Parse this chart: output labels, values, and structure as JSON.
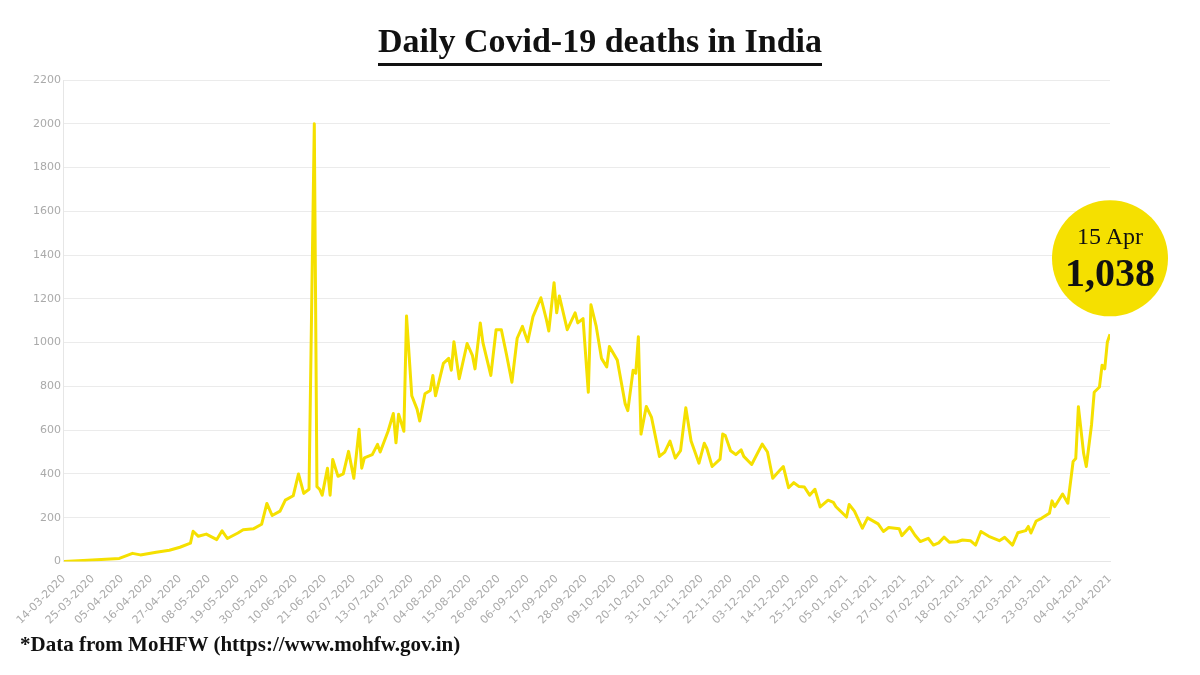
{
  "chart_data": {
    "type": "line",
    "title": "Daily Covid-19 deaths in India",
    "annotations": [
      {
        "text": "15 Apr\n1,038",
        "x": "2021-04-15",
        "y": 1038
      },
      "*Data from MoHFW (https://www.mohfw.gov.in)"
    ],
    "x": [
      "2020-03-14",
      "2020-03-23",
      "2020-04-04",
      "2020-04-09",
      "2020-04-12",
      "2020-04-18",
      "2020-04-23",
      "2020-04-27",
      "2020-05-01",
      "2020-05-02",
      "2020-05-04",
      "2020-05-07",
      "2020-05-11",
      "2020-05-13",
      "2020-05-15",
      "2020-05-19",
      "2020-05-21",
      "2020-05-25",
      "2020-05-28",
      "2020-05-30",
      "2020-06-01",
      "2020-06-04",
      "2020-06-06",
      "2020-06-09",
      "2020-06-11",
      "2020-06-13",
      "2020-06-15",
      "2020-06-17",
      "2020-06-18",
      "2020-06-19",
      "2020-06-20",
      "2020-06-22",
      "2020-06-23",
      "2020-06-24",
      "2020-06-26",
      "2020-06-28",
      "2020-06-30",
      "2020-07-02",
      "2020-07-04",
      "2020-07-05",
      "2020-07-06",
      "2020-07-09",
      "2020-07-11",
      "2020-07-12",
      "2020-07-15",
      "2020-07-17",
      "2020-07-18",
      "2020-07-19",
      "2020-07-21",
      "2020-07-22",
      "2020-07-24",
      "2020-07-26",
      "2020-07-27",
      "2020-07-29",
      "2020-07-31",
      "2020-08-01",
      "2020-08-02",
      "2020-08-05",
      "2020-08-07",
      "2020-08-08",
      "2020-08-09",
      "2020-08-11",
      "2020-08-14",
      "2020-08-16",
      "2020-08-17",
      "2020-08-19",
      "2020-08-20",
      "2020-08-23",
      "2020-08-25",
      "2020-08-27",
      "2020-08-29",
      "2020-08-31",
      "2020-09-02",
      "2020-09-04",
      "2020-09-06",
      "2020-09-08",
      "2020-09-11",
      "2020-09-13",
      "2020-09-14",
      "2020-09-16",
      "2020-09-17",
      "2020-09-18",
      "2020-09-21",
      "2020-09-24",
      "2020-09-25",
      "2020-09-27",
      "2020-09-29",
      "2020-09-30",
      "2020-10-02",
      "2020-10-04",
      "2020-10-06",
      "2020-10-07",
      "2020-10-10",
      "2020-10-13",
      "2020-10-14",
      "2020-10-16",
      "2020-10-17",
      "2020-10-18",
      "2020-10-19",
      "2020-10-21",
      "2020-10-23",
      "2020-10-26",
      "2020-10-28",
      "2020-10-30",
      "2020-11-01",
      "2020-11-03",
      "2020-11-05",
      "2020-11-07",
      "2020-11-10",
      "2020-11-12",
      "2020-11-13",
      "2020-11-15",
      "2020-11-18",
      "2020-11-19",
      "2020-11-20",
      "2020-11-22",
      "2020-11-24",
      "2020-11-26",
      "2020-11-27",
      "2020-11-30",
      "2020-12-04",
      "2020-12-06",
      "2020-12-08",
      "2020-12-10",
      "2020-12-12",
      "2020-12-14",
      "2020-12-16",
      "2020-12-18",
      "2020-12-20",
      "2020-12-22",
      "2020-12-24",
      "2020-12-26",
      "2020-12-29",
      "2020-12-31",
      "2021-01-01",
      "2021-01-05",
      "2021-01-06",
      "2021-01-08",
      "2021-01-11",
      "2021-01-13",
      "2021-01-17",
      "2021-01-19",
      "2021-01-21",
      "2021-01-25",
      "2021-01-26",
      "2021-01-29",
      "2021-01-31",
      "2021-02-02",
      "2021-02-05",
      "2021-02-07",
      "2021-02-09",
      "2021-02-11",
      "2021-02-13",
      "2021-02-16",
      "2021-02-18",
      "2021-02-21",
      "2021-02-23",
      "2021-02-25",
      "2021-02-28",
      "2021-03-04",
      "2021-03-06",
      "2021-03-09",
      "2021-03-11",
      "2021-03-14",
      "2021-03-15",
      "2021-03-16",
      "2021-03-18",
      "2021-03-20",
      "2021-03-23",
      "2021-03-24",
      "2021-03-25",
      "2021-03-28",
      "2021-03-30",
      "2021-04-01",
      "2021-04-02",
      "2021-04-03",
      "2021-04-05",
      "2021-04-06",
      "2021-04-08",
      "2021-04-09",
      "2021-04-11",
      "2021-04-12",
      "2021-04-13",
      "2021-04-14",
      "2021-04-15"
    ],
    "series": [
      {
        "color": "#f5e000",
        "values": [
          0,
          5,
          14,
          37,
          30,
          42,
          51,
          65,
          84,
          138,
          115,
          125,
          100,
          140,
          105,
          130,
          145,
          150,
          170,
          265,
          210,
          230,
          280,
          300,
          400,
          311,
          330,
          2000,
          342,
          330,
          303,
          426,
          303,
          466,
          389,
          400,
          503,
          380,
          604,
          426,
          473,
          488,
          535,
          500,
          595,
          676,
          542,
          673,
          595,
          1122,
          757,
          696,
          642,
          766,
          781,
          850,
          757,
          905,
          928,
          874,
          1004,
          835,
          996,
          942,
          880,
          1090,
          1000,
          850,
          1059,
          1059,
          942,
          819,
          1020,
          1074,
          1004,
          1119,
          1205,
          1110,
          1053,
          1274,
          1136,
          1213,
          1059,
          1136,
          1090,
          1110,
          773,
          1173,
          1074,
          928,
          889,
          982,
          920,
          720,
          689,
          874,
          860,
          1027,
          582,
          708,
          658,
          480,
          500,
          550,
          472,
          506,
          702,
          550,
          449,
          540,
          516,
          434,
          468,
          582,
          575,
          506,
          488,
          510,
          480,
          443,
          536,
          500,
          380,
          408,
          434,
          337,
          360,
          342,
          340,
          303,
          330,
          249,
          280,
          270,
          250,
          203,
          260,
          230,
          152,
          199,
          172,
          137,
          155,
          149,
          118,
          157,
          120,
          91,
          106,
          75,
          85,
          111,
          88,
          90,
          98,
          95,
          75,
          137,
          115,
          95,
          110,
          75,
          131,
          141,
          160,
          130,
          185,
          197,
          220,
          277,
          250,
          308,
          266,
          457,
          470,
          707,
          493,
          434,
          626,
          773,
          797,
          897,
          880,
          1003,
          1038
        ]
      }
    ],
    "xlim": [
      "2020-03-14",
      "2021-04-15"
    ],
    "xticks": [
      {
        "value": "2020-03-14",
        "label": "14-03-2020"
      },
      {
        "value": "2020-03-25",
        "label": "25-03-2020"
      },
      {
        "value": "2020-04-05",
        "label": "05-04-2020"
      },
      {
        "value": "2020-04-16",
        "label": "16-04-2020"
      },
      {
        "value": "2020-04-27",
        "label": "27-04-2020"
      },
      {
        "value": "2020-05-08",
        "label": "08-05-2020"
      },
      {
        "value": "2020-05-19",
        "label": "19-05-2020"
      },
      {
        "value": "2020-05-30",
        "label": "30-05-2020"
      },
      {
        "value": "2020-06-10",
        "label": "10-06-2020"
      },
      {
        "value": "2020-06-21",
        "label": "21-06-2020"
      },
      {
        "value": "2020-07-02",
        "label": "02-07-2020"
      },
      {
        "value": "2020-07-13",
        "label": "13-07-2020"
      },
      {
        "value": "2020-07-24",
        "label": "24-07-2020"
      },
      {
        "value": "2020-08-04",
        "label": "04-08-2020"
      },
      {
        "value": "2020-08-15",
        "label": "15-08-2020"
      },
      {
        "value": "2020-08-26",
        "label": "26-08-2020"
      },
      {
        "value": "2020-09-06",
        "label": "06-09-2020"
      },
      {
        "value": "2020-09-17",
        "label": "17-09-2020"
      },
      {
        "value": "2020-09-28",
        "label": "28-09-2020"
      },
      {
        "value": "2020-10-09",
        "label": "09-10-2020"
      },
      {
        "value": "2020-10-20",
        "label": "20-10-2020"
      },
      {
        "value": "2020-10-31",
        "label": "31-10-2020"
      },
      {
        "value": "2020-11-11",
        "label": "11-11-2020"
      },
      {
        "value": "2020-11-22",
        "label": "22-11-2020"
      },
      {
        "value": "2020-12-03",
        "label": "03-12-2020"
      },
      {
        "value": "2020-12-14",
        "label": "14-12-2020"
      },
      {
        "value": "2020-12-25",
        "label": "25-12-2020"
      },
      {
        "value": "2021-01-05",
        "label": "05-01-2021"
      },
      {
        "value": "2021-01-16",
        "label": "16-01-2021"
      },
      {
        "value": "2021-01-27",
        "label": "27-01-2021"
      },
      {
        "value": "2021-02-07",
        "label": "07-02-2021"
      },
      {
        "value": "2021-02-18",
        "label": "18-02-2021"
      },
      {
        "value": "2021-03-01",
        "label": "01-03-2021"
      },
      {
        "value": "2021-03-12",
        "label": "12-03-2021"
      },
      {
        "value": "2021-03-23",
        "label": "23-03-2021"
      },
      {
        "value": "2021-04-04",
        "label": "04-04-2021"
      },
      {
        "value": "2021-04-15",
        "label": "15-04-2021"
      }
    ],
    "ylim": [
      0,
      2200
    ],
    "yticks": [
      0,
      200,
      400,
      600,
      800,
      1000,
      1200,
      1400,
      1600,
      1800,
      2000,
      2200
    ],
    "grid": "y",
    "legend": false,
    "marker": "none",
    "line_style": "solid"
  }
}
